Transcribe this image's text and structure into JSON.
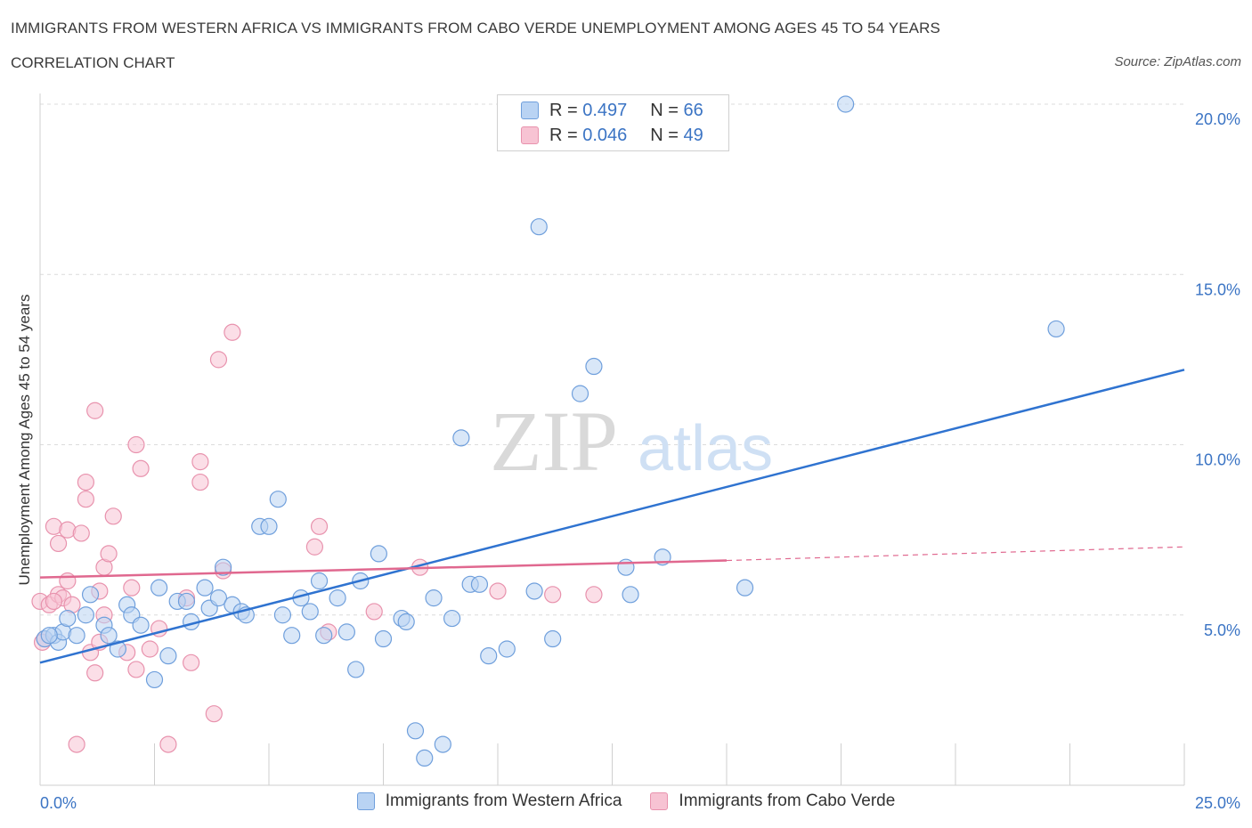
{
  "title": "IMMIGRANTS FROM WESTERN AFRICA VS IMMIGRANTS FROM CABO VERDE UNEMPLOYMENT AMONG AGES 45 TO 54 YEARS",
  "subtitle": "CORRELATION CHART",
  "source": "Source: ZipAtlas.com",
  "watermark": {
    "zip": "ZIP",
    "atlas": "atlas"
  },
  "colors": {
    "blue_fill": "#b9d3f3",
    "blue_stroke": "#6f9fdc",
    "blue_line": "#2f73d0",
    "pink_fill": "#f7c3d3",
    "pink_stroke": "#e892ad",
    "pink_line": "#e0688f",
    "axis_text": "#3b74c4",
    "grid": "#dcdcdc"
  },
  "legend": {
    "r_label": "R =",
    "n_label": "N =",
    "series": [
      {
        "r": "0.497",
        "n": "66"
      },
      {
        "r": "0.046",
        "n": "49"
      }
    ]
  },
  "chart_data": {
    "type": "scatter",
    "xlabel": "",
    "ylabel": "Unemployment Among Ages 45 to 54 years",
    "xlim": [
      0,
      25
    ],
    "ylim": [
      0,
      20
    ],
    "x_tick_labels": [
      "0.0%",
      "25.0%"
    ],
    "y_ticks": [
      5,
      10,
      15,
      20
    ],
    "y_tick_labels": [
      "5.0%",
      "10.0%",
      "15.0%",
      "20.0%"
    ],
    "grid": true,
    "legend_position": "top-center",
    "series": [
      {
        "name": "Immigrants from Western Africa",
        "color": "blue",
        "points": [
          [
            0.1,
            4.3
          ],
          [
            0.3,
            4.4
          ],
          [
            0.4,
            4.2
          ],
          [
            0.5,
            4.5
          ],
          [
            0.6,
            4.9
          ],
          [
            0.8,
            4.4
          ],
          [
            1.0,
            5.0
          ],
          [
            1.1,
            5.6
          ],
          [
            1.4,
            4.7
          ],
          [
            1.5,
            4.4
          ],
          [
            1.7,
            4.0
          ],
          [
            1.9,
            5.3
          ],
          [
            2.0,
            5.0
          ],
          [
            2.2,
            4.7
          ],
          [
            2.5,
            3.1
          ],
          [
            2.6,
            5.8
          ],
          [
            2.8,
            3.8
          ],
          [
            3.0,
            5.4
          ],
          [
            3.2,
            5.4
          ],
          [
            3.3,
            4.8
          ],
          [
            3.6,
            5.8
          ],
          [
            3.7,
            5.2
          ],
          [
            3.9,
            5.5
          ],
          [
            4.0,
            6.4
          ],
          [
            4.2,
            5.3
          ],
          [
            4.4,
            5.1
          ],
          [
            4.5,
            5.0
          ],
          [
            4.8,
            7.6
          ],
          [
            5.0,
            7.6
          ],
          [
            5.2,
            8.4
          ],
          [
            5.3,
            5.0
          ],
          [
            5.5,
            4.4
          ],
          [
            5.7,
            5.5
          ],
          [
            5.9,
            5.1
          ],
          [
            6.1,
            6.0
          ],
          [
            6.2,
            4.4
          ],
          [
            6.5,
            5.5
          ],
          [
            6.7,
            4.5
          ],
          [
            6.9,
            3.4
          ],
          [
            7.0,
            6.0
          ],
          [
            7.4,
            6.8
          ],
          [
            7.5,
            4.3
          ],
          [
            7.9,
            4.9
          ],
          [
            8.0,
            4.8
          ],
          [
            8.2,
            1.6
          ],
          [
            8.4,
            0.8
          ],
          [
            8.6,
            5.5
          ],
          [
            8.8,
            1.2
          ],
          [
            9.0,
            4.9
          ],
          [
            9.2,
            10.2
          ],
          [
            9.4,
            5.9
          ],
          [
            9.6,
            5.9
          ],
          [
            9.8,
            3.8
          ],
          [
            10.2,
            4.0
          ],
          [
            10.8,
            5.7
          ],
          [
            10.9,
            16.4
          ],
          [
            11.2,
            4.3
          ],
          [
            11.8,
            11.5
          ],
          [
            12.1,
            12.3
          ],
          [
            12.8,
            6.4
          ],
          [
            12.9,
            5.6
          ],
          [
            13.6,
            6.7
          ],
          [
            15.4,
            5.8
          ],
          [
            17.6,
            20.0
          ],
          [
            22.2,
            13.4
          ],
          [
            0.2,
            4.4
          ]
        ]
      },
      {
        "name": "Immigrants from Cabo Verde",
        "color": "pink",
        "points": [
          [
            0.0,
            5.4
          ],
          [
            0.1,
            4.3
          ],
          [
            0.2,
            5.3
          ],
          [
            0.3,
            7.6
          ],
          [
            0.4,
            5.6
          ],
          [
            0.4,
            7.1
          ],
          [
            0.5,
            5.5
          ],
          [
            0.6,
            7.5
          ],
          [
            0.6,
            6.0
          ],
          [
            0.7,
            5.3
          ],
          [
            0.8,
            1.2
          ],
          [
            0.9,
            7.4
          ],
          [
            1.0,
            8.9
          ],
          [
            1.0,
            8.4
          ],
          [
            1.1,
            3.9
          ],
          [
            1.2,
            11.0
          ],
          [
            1.2,
            3.3
          ],
          [
            1.3,
            4.2
          ],
          [
            1.3,
            5.7
          ],
          [
            1.4,
            6.4
          ],
          [
            1.4,
            5.0
          ],
          [
            1.5,
            6.8
          ],
          [
            1.6,
            7.9
          ],
          [
            1.9,
            3.9
          ],
          [
            2.0,
            5.8
          ],
          [
            2.1,
            10.0
          ],
          [
            2.1,
            3.4
          ],
          [
            2.2,
            9.3
          ],
          [
            2.4,
            4.0
          ],
          [
            2.6,
            4.6
          ],
          [
            2.8,
            1.2
          ],
          [
            3.2,
            5.5
          ],
          [
            3.3,
            3.6
          ],
          [
            3.5,
            9.5
          ],
          [
            3.5,
            8.9
          ],
          [
            3.8,
            2.1
          ],
          [
            3.9,
            12.5
          ],
          [
            4.0,
            6.3
          ],
          [
            4.2,
            13.3
          ],
          [
            6.0,
            7.0
          ],
          [
            6.1,
            7.6
          ],
          [
            6.3,
            4.5
          ],
          [
            7.3,
            5.1
          ],
          [
            8.3,
            6.4
          ],
          [
            10.0,
            5.7
          ],
          [
            11.2,
            5.6
          ],
          [
            12.1,
            5.6
          ],
          [
            0.05,
            4.2
          ],
          [
            0.3,
            5.4
          ]
        ]
      }
    ],
    "trend_lines": [
      {
        "series": "Immigrants from Western Africa",
        "x1": 0.0,
        "y1": 3.6,
        "x2": 25.0,
        "y2": 12.2
      },
      {
        "series": "Immigrants from Cabo Verde",
        "x1": 0.0,
        "y1": 6.1,
        "x2": 15.0,
        "y2": 6.6,
        "dashed_to_x": 25.0,
        "dashed_to_y": 7.0
      }
    ]
  }
}
